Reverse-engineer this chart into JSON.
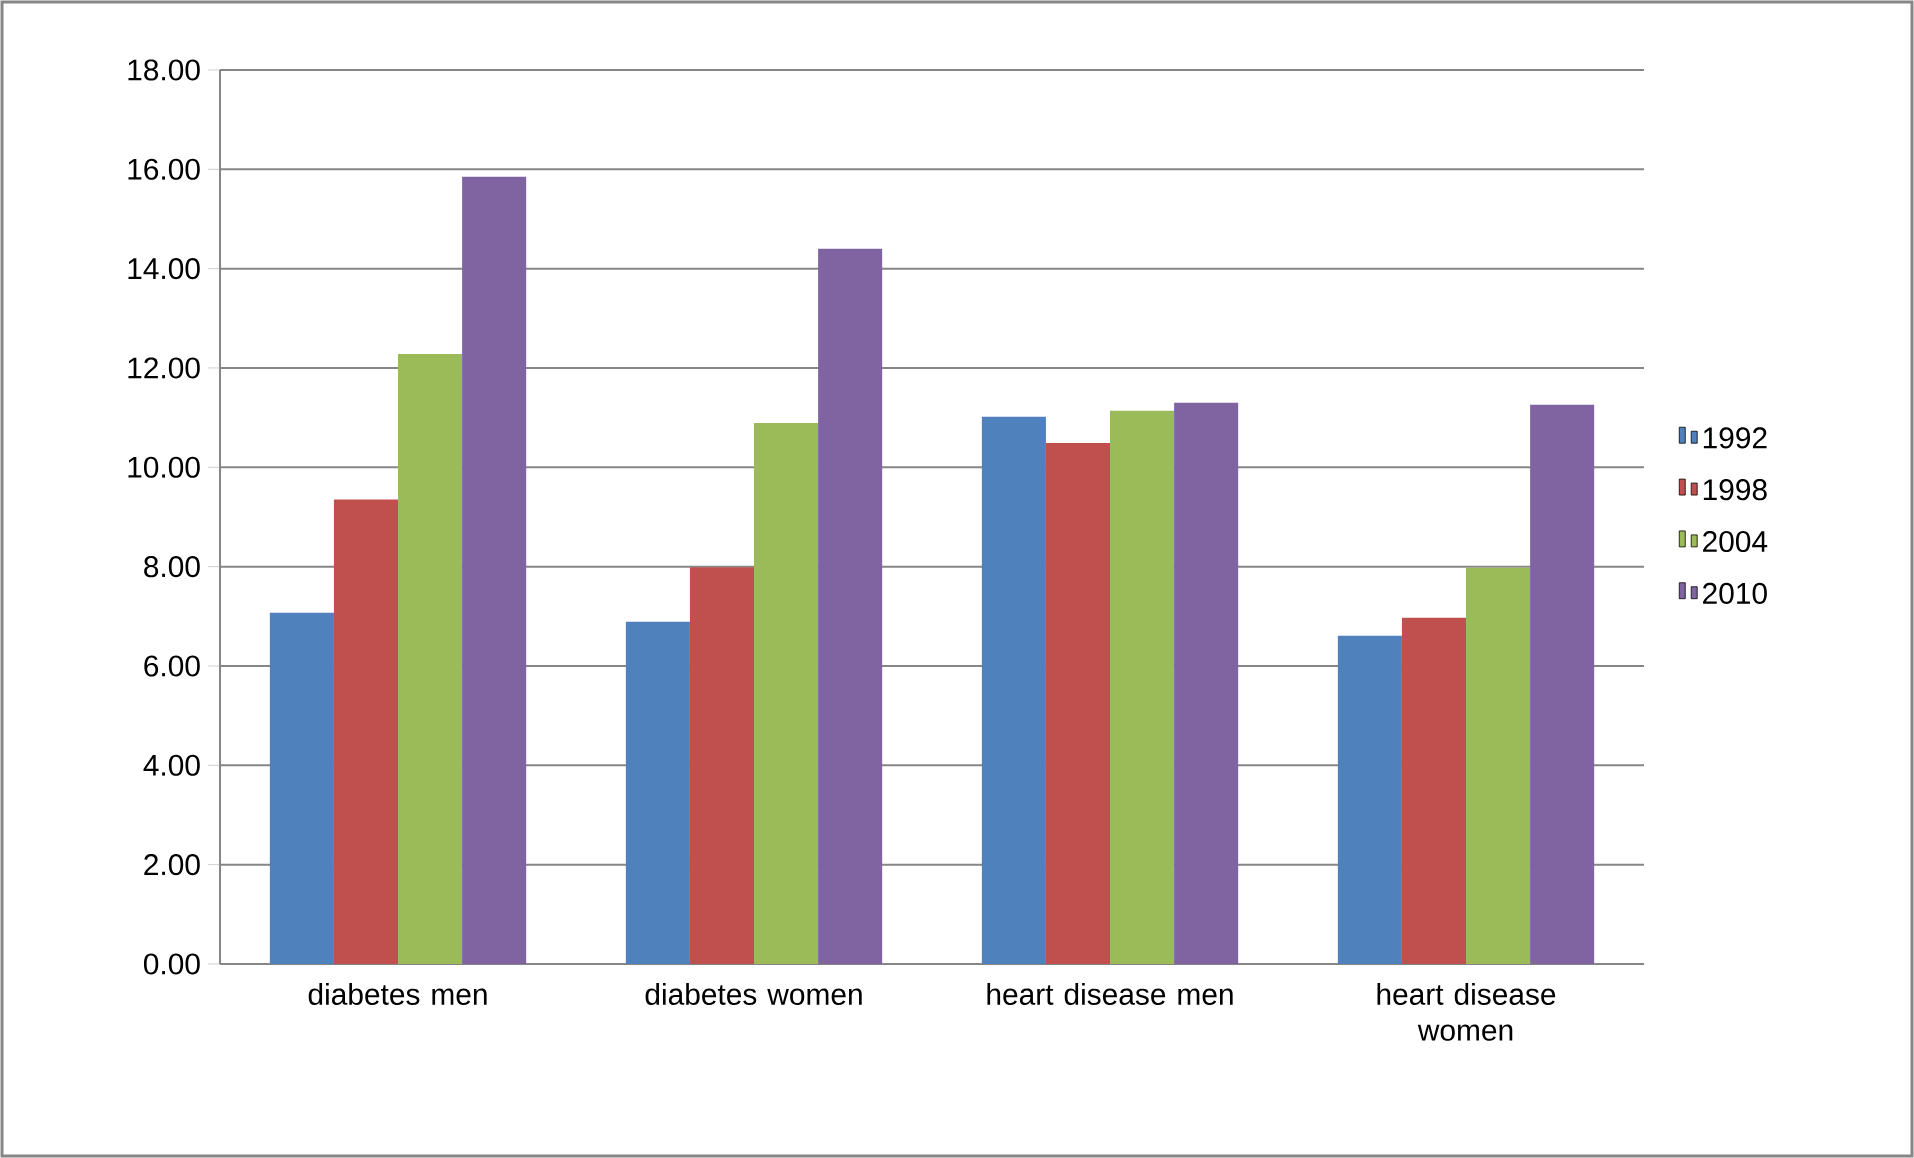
{
  "chart_data": {
    "type": "bar",
    "categories": [
      "diabetes men",
      "diabetes women",
      "heart disease men",
      "heart disease women"
    ],
    "series": [
      {
        "name": "1992",
        "color": "#4f81bd",
        "values": [
          7.07,
          6.89,
          11.02,
          6.61
        ]
      },
      {
        "name": "1998",
        "color": "#c0504d",
        "values": [
          9.35,
          7.99,
          10.49,
          6.97
        ]
      },
      {
        "name": "2004",
        "color": "#9bbb59",
        "values": [
          12.28,
          10.89,
          11.14,
          7.98
        ]
      },
      {
        "name": "2010",
        "color": "#8064a2",
        "values": [
          15.85,
          14.4,
          11.3,
          11.26
        ]
      }
    ],
    "ylim": [
      0,
      18
    ],
    "yticks": [
      {
        "value": 0,
        "label": "0.00"
      },
      {
        "value": 2,
        "label": "2.00"
      },
      {
        "value": 4,
        "label": "4.00"
      },
      {
        "value": 6,
        "label": "6.00"
      },
      {
        "value": 8,
        "label": "8.00"
      },
      {
        "value": 10,
        "label": "10.00"
      },
      {
        "value": 12,
        "label": "12.00"
      },
      {
        "value": 14,
        "label": "14.00"
      },
      {
        "value": 16,
        "label": "16.00"
      },
      {
        "value": 18,
        "label": "18.00"
      }
    ],
    "grid": "y",
    "legend": "right"
  }
}
